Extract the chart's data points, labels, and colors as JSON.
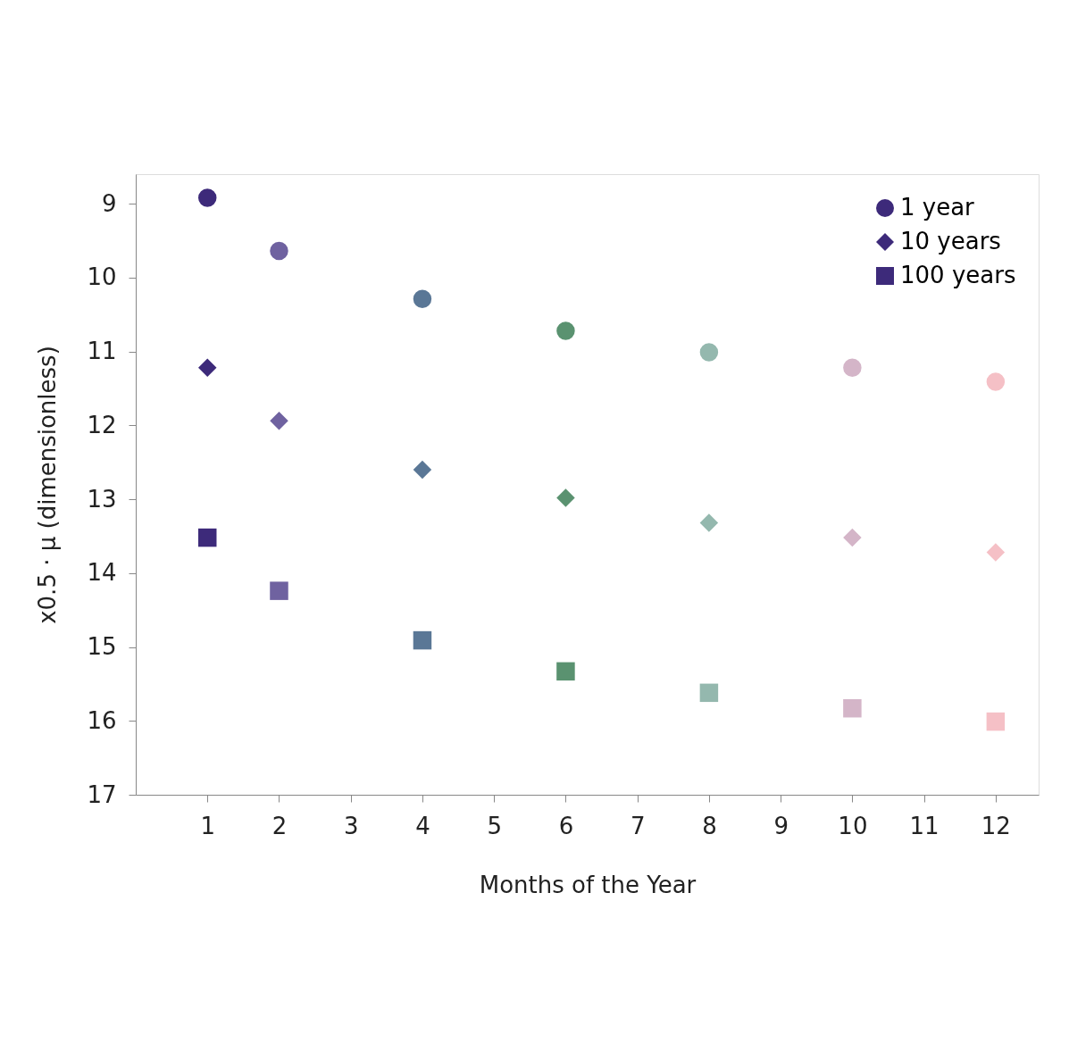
{
  "chart_data": {
    "type": "scatter",
    "xlabel": "Months of the Year",
    "ylabel": "x0.5 · μ (dimensionless)",
    "x": [
      1,
      2,
      4,
      6,
      8,
      10,
      12
    ],
    "series": [
      {
        "name": "1 year",
        "marker": "circle",
        "colors": [
          "#3d2a7a",
          "#6f62a0",
          "#5a7796",
          "#5a9270",
          "#94b8ae",
          "#d4b5c8",
          "#f5c0c6"
        ],
        "values": [
          8.92,
          9.64,
          10.29,
          10.72,
          11.01,
          11.22,
          11.41
        ]
      },
      {
        "name": "10 years",
        "marker": "diamond",
        "colors": [
          "#3d2a7a",
          "#6f62a0",
          "#5a7796",
          "#5a9270",
          "#94b8ae",
          "#d4b5c8",
          "#f5c0c6"
        ],
        "values": [
          11.22,
          11.94,
          12.6,
          12.98,
          13.32,
          13.52,
          13.72
        ]
      },
      {
        "name": "100 years",
        "marker": "square",
        "colors": [
          "#3d2a7a",
          "#6f62a0",
          "#5a7796",
          "#5a9270",
          "#94b8ae",
          "#d4b5c8",
          "#f5c0c6"
        ],
        "values": [
          13.52,
          14.24,
          14.91,
          15.33,
          15.62,
          15.83,
          16.01
        ]
      }
    ],
    "xlim": [
      0,
      12.6
    ],
    "xticks": [
      1,
      2,
      3,
      4,
      5,
      6,
      7,
      8,
      9,
      10,
      11,
      12
    ],
    "ylim": [
      17,
      8.6
    ],
    "yticks": [
      9,
      10,
      11,
      12,
      13,
      14,
      15,
      16,
      17
    ],
    "grid": false,
    "legend": "top right"
  }
}
